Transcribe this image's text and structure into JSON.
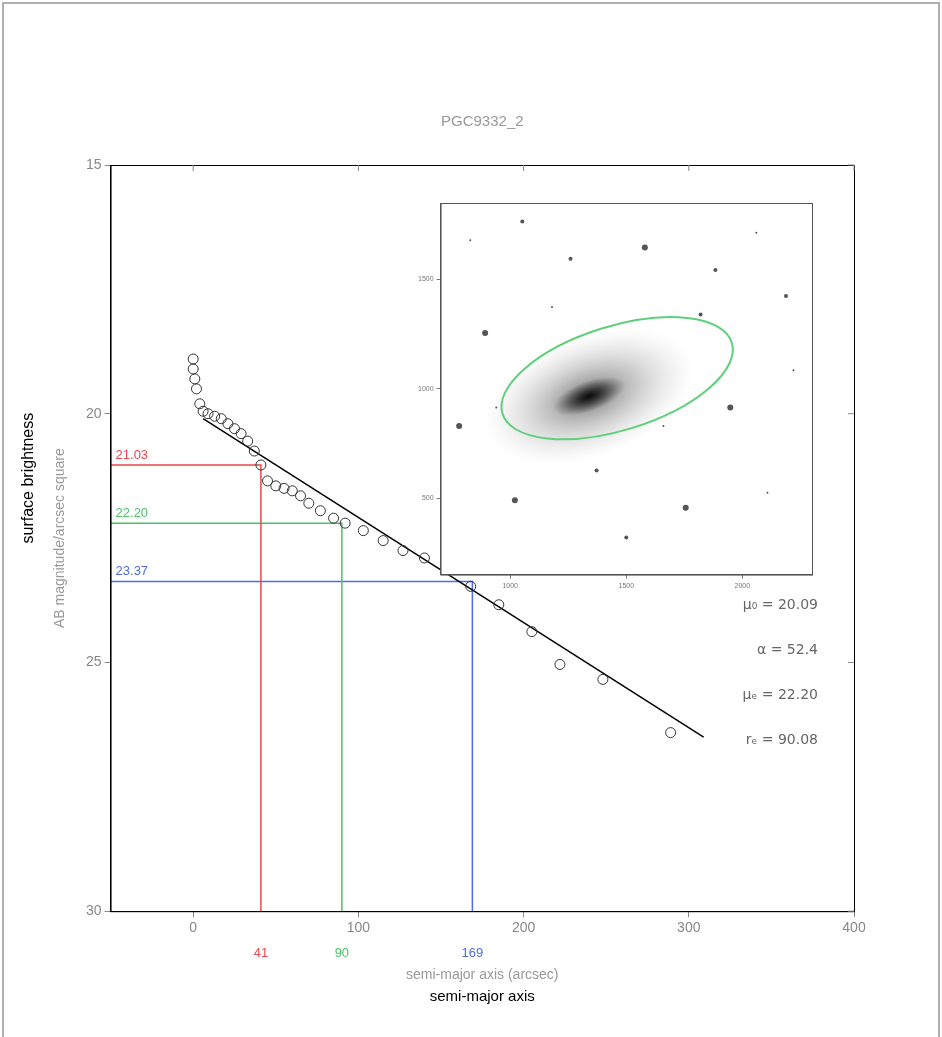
{
  "chart_data": {
    "type": "scatter",
    "title": "PGC9332_2",
    "x_label": "semi-major axis (arcsec)",
    "y_label": "AB magnitude/arcsec square",
    "axis_annotations": {
      "x": "semi-major axis",
      "y": "surface brightness"
    },
    "xlim": [
      -50,
      400
    ],
    "xticks": [
      0,
      100,
      200,
      300,
      400
    ],
    "ylim": [
      30,
      15
    ],
    "yticks": [
      15,
      20,
      25,
      30
    ],
    "grid": false,
    "series": [
      {
        "type": "scatter",
        "color": "#333333",
        "marker": "circle_open",
        "x": [
          0,
          0,
          1,
          2,
          4,
          6,
          9,
          13,
          17,
          21,
          25,
          29,
          33,
          37,
          41,
          45,
          50,
          55,
          60,
          65,
          70,
          77,
          85,
          92,
          103,
          115,
          127,
          140,
          168,
          185,
          205,
          222,
          248,
          289
        ],
        "values": [
          18.9,
          19.1,
          19.3,
          19.5,
          19.8,
          19.95,
          20.0,
          20.05,
          20.1,
          20.2,
          20.3,
          20.4,
          20.55,
          20.75,
          21.03,
          21.35,
          21.45,
          21.5,
          21.55,
          21.65,
          21.8,
          21.95,
          22.1,
          22.2,
          22.35,
          22.55,
          22.75,
          22.9,
          23.47,
          23.84,
          24.38,
          25.04,
          25.34,
          26.41
        ]
      },
      {
        "type": "line",
        "color": "#000000",
        "line_style": "solid",
        "x": [
          6,
          309
        ],
        "values": [
          20.1,
          26.5
        ]
      }
    ],
    "guides": [
      {
        "x": 41,
        "y": 21.03,
        "color": "#e8474c"
      },
      {
        "x": 90,
        "y": 22.2,
        "y_label": "22.20",
        "color": "#4cc26a"
      },
      {
        "x": 169,
        "y": 23.37,
        "color": "#4f6be6"
      }
    ],
    "fit_parameters": [
      "μ₀ = 20.09",
      "α = 52.4",
      "μₑ = 22.20",
      "rₑ = 90.08"
    ],
    "inset": {
      "xlim": [
        700,
        2300
      ],
      "xticks": [
        1000,
        1500,
        2000
      ],
      "ylim": [
        150,
        1850
      ],
      "yticks": [
        500,
        1000,
        1500
      ]
    }
  }
}
